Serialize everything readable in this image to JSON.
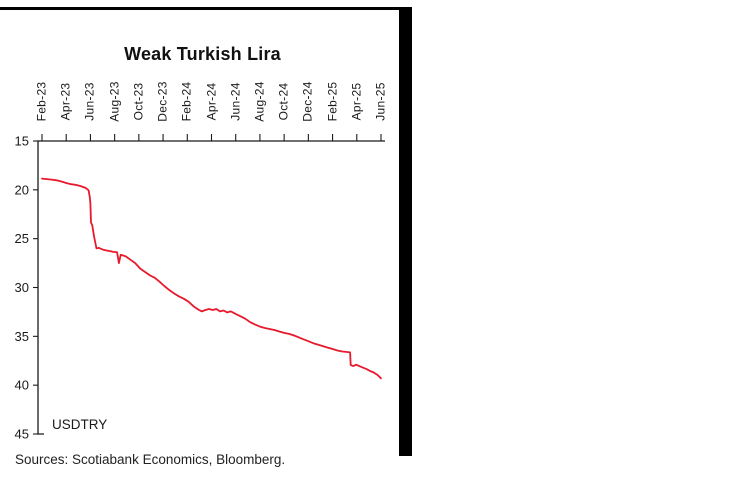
{
  "frame": {
    "top_bar_color": "#000000",
    "side_bar_color": "#000000",
    "background_color": "#ffffff"
  },
  "chart_data": {
    "type": "line",
    "title": "Weak Turkish Lira",
    "in_plot_label": "USDTRY",
    "x_range": [
      0,
      28
    ],
    "x_tick_months": [
      0,
      2,
      4,
      6,
      8,
      10,
      12,
      14,
      16,
      18,
      20,
      22,
      24,
      26,
      28
    ],
    "x_tick_labels": [
      "Feb-23",
      "Apr-23",
      "Jun-23",
      "Aug-23",
      "Oct-23",
      "Dec-23",
      "Feb-24",
      "Apr-24",
      "Jun-24",
      "Aug-24",
      "Oct-24",
      "Dec-24",
      "Feb-25",
      "Apr-25",
      "Jun-25"
    ],
    "y_range": [
      15,
      45
    ],
    "y_ticks": [
      15,
      20,
      25,
      30,
      35,
      40,
      45
    ],
    "y_axis_inverted": true,
    "grid": false,
    "axis_color": "#1a1a1a",
    "series": [
      {
        "name": "USDTRY",
        "color": "#e8192d",
        "points": [
          [
            0,
            18.85
          ],
          [
            0.4,
            18.9
          ],
          [
            0.8,
            18.95
          ],
          [
            1.2,
            19.02
          ],
          [
            1.6,
            19.15
          ],
          [
            2.0,
            19.3
          ],
          [
            2.4,
            19.42
          ],
          [
            2.8,
            19.5
          ],
          [
            3.2,
            19.62
          ],
          [
            3.6,
            19.8
          ],
          [
            3.85,
            20.05
          ],
          [
            3.95,
            20.75
          ],
          [
            4.0,
            21.4
          ],
          [
            4.05,
            23.35
          ],
          [
            4.15,
            23.6
          ],
          [
            4.3,
            24.8
          ],
          [
            4.45,
            25.7
          ],
          [
            4.5,
            26.0
          ],
          [
            4.7,
            25.95
          ],
          [
            4.9,
            26.05
          ],
          [
            5.1,
            26.15
          ],
          [
            5.5,
            26.25
          ],
          [
            5.9,
            26.35
          ],
          [
            6.2,
            26.4
          ],
          [
            6.35,
            27.5
          ],
          [
            6.5,
            26.65
          ],
          [
            6.9,
            26.8
          ],
          [
            7.3,
            27.15
          ],
          [
            7.7,
            27.5
          ],
          [
            8.1,
            28.05
          ],
          [
            8.5,
            28.4
          ],
          [
            8.9,
            28.75
          ],
          [
            9.3,
            29.0
          ],
          [
            9.7,
            29.4
          ],
          [
            10.1,
            29.85
          ],
          [
            10.5,
            30.25
          ],
          [
            10.9,
            30.6
          ],
          [
            11.3,
            30.9
          ],
          [
            11.7,
            31.15
          ],
          [
            12.1,
            31.45
          ],
          [
            12.5,
            31.9
          ],
          [
            12.9,
            32.25
          ],
          [
            13.2,
            32.45
          ],
          [
            13.5,
            32.3
          ],
          [
            13.8,
            32.2
          ],
          [
            14.1,
            32.3
          ],
          [
            14.4,
            32.2
          ],
          [
            14.7,
            32.45
          ],
          [
            15.0,
            32.35
          ],
          [
            15.3,
            32.55
          ],
          [
            15.6,
            32.45
          ],
          [
            16.0,
            32.7
          ],
          [
            16.4,
            32.95
          ],
          [
            16.8,
            33.2
          ],
          [
            17.2,
            33.55
          ],
          [
            17.6,
            33.8
          ],
          [
            18.0,
            34.0
          ],
          [
            18.4,
            34.15
          ],
          [
            18.8,
            34.25
          ],
          [
            19.2,
            34.35
          ],
          [
            19.6,
            34.5
          ],
          [
            20.0,
            34.65
          ],
          [
            20.4,
            34.75
          ],
          [
            20.8,
            34.9
          ],
          [
            21.2,
            35.1
          ],
          [
            21.6,
            35.3
          ],
          [
            22.0,
            35.5
          ],
          [
            22.4,
            35.7
          ],
          [
            22.8,
            35.85
          ],
          [
            23.2,
            36.0
          ],
          [
            23.6,
            36.15
          ],
          [
            24.0,
            36.3
          ],
          [
            24.4,
            36.45
          ],
          [
            24.8,
            36.55
          ],
          [
            25.2,
            36.6
          ],
          [
            25.45,
            36.65
          ],
          [
            25.5,
            37.95
          ],
          [
            25.7,
            38.05
          ],
          [
            25.95,
            37.9
          ],
          [
            26.2,
            38.05
          ],
          [
            26.5,
            38.2
          ],
          [
            26.8,
            38.35
          ],
          [
            27.1,
            38.55
          ],
          [
            27.4,
            38.7
          ],
          [
            27.7,
            38.95
          ],
          [
            28.0,
            39.3
          ]
        ]
      }
    ]
  },
  "footer": {
    "sources": "Sources: Scotiabank Economics, Bloomberg."
  }
}
